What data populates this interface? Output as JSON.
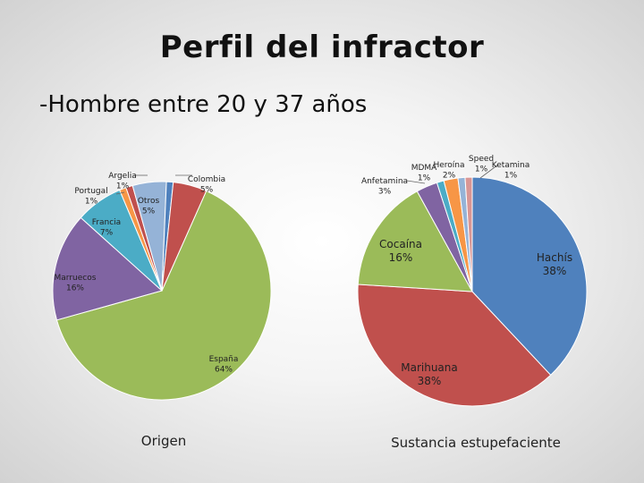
{
  "slide": {
    "title": "Perfil del infractor",
    "subtitle": "-Hombre entre 20 y 37 años"
  },
  "chart_data": [
    {
      "type": "pie",
      "title": "Origen",
      "slices": [
        {
          "label": "España",
          "value": 64,
          "text": "64%",
          "color": "#9bbb59"
        },
        {
          "label": "Marruecos",
          "value": 16,
          "text": "16%",
          "color": "#8064a2"
        },
        {
          "label": "Francia",
          "value": 7,
          "text": "7%",
          "color": "#4bacc6"
        },
        {
          "label": "Portugal",
          "value": 1,
          "text": "1%",
          "color": "#f79646"
        },
        {
          "label": "Argelia",
          "value": 1,
          "text": "1%",
          "color": "#c0504d"
        },
        {
          "label": "Otros",
          "value": 5,
          "text": "5%",
          "color": "#95b3d7"
        },
        {
          "label": "",
          "value": 1,
          "text": "",
          "color": "#4f81bd"
        },
        {
          "label": "Colombia",
          "value": 5,
          "text": "5%",
          "color": "#c0504d"
        }
      ]
    },
    {
      "type": "pie",
      "title": "Sustancia estupefaciente",
      "slices": [
        {
          "label": "Hachís",
          "value": 38,
          "text": "38%",
          "color": "#4f81bd"
        },
        {
          "label": "Marihuana",
          "value": 38,
          "text": "38%",
          "color": "#c0504d"
        },
        {
          "label": "Cocaína",
          "value": 16,
          "text": "16%",
          "color": "#9bbb59"
        },
        {
          "label": "Anfetamina",
          "value": 3,
          "text": "3%",
          "color": "#8064a2"
        },
        {
          "label": "MDMA",
          "value": 1,
          "text": "1%",
          "color": "#4bacc6"
        },
        {
          "label": "Heroína",
          "value": 2,
          "text": "2%",
          "color": "#f79646"
        },
        {
          "label": "Speed",
          "value": 1,
          "text": "1%",
          "color": "#95b3d7"
        },
        {
          "label": "Ketamina",
          "value": 1,
          "text": "1%",
          "color": "#d99694"
        }
      ]
    }
  ]
}
